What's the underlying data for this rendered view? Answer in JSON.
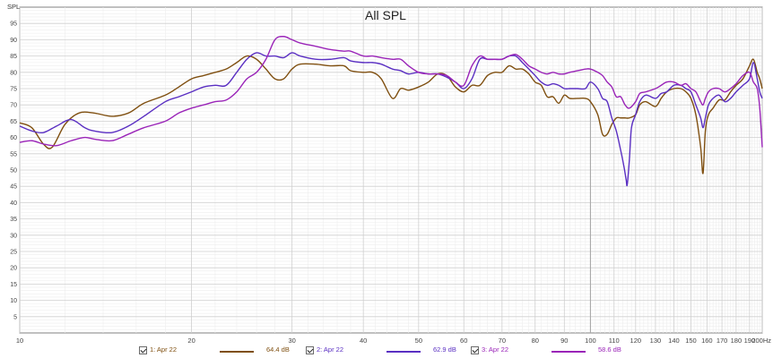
{
  "chart_data": {
    "type": "line",
    "title": "All SPL",
    "ylabel": "SPL",
    "xunit": "Hz",
    "xscale": "log",
    "xlim": [
      10,
      200
    ],
    "ylim": [
      0,
      100
    ],
    "grid": true,
    "legend_position": "bottom",
    "x_ticks": [
      {
        "value": 10,
        "label": "10"
      },
      {
        "value": 20,
        "label": "20"
      },
      {
        "value": 30,
        "label": "30"
      },
      {
        "value": 40,
        "label": "40"
      },
      {
        "value": 50,
        "label": "50"
      },
      {
        "value": 60,
        "label": "60"
      },
      {
        "value": 70,
        "label": "70"
      },
      {
        "value": 80,
        "label": "80"
      },
      {
        "value": 90,
        "label": "90"
      },
      {
        "value": 100,
        "label": "100"
      },
      {
        "value": 110,
        "label": "110"
      },
      {
        "value": 120,
        "label": "120"
      },
      {
        "value": 130,
        "label": "130"
      },
      {
        "value": 140,
        "label": "140"
      },
      {
        "value": 150,
        "label": "150"
      },
      {
        "value": 160,
        "label": "160"
      },
      {
        "value": 170,
        "label": "170"
      },
      {
        "value": 180,
        "label": "180"
      },
      {
        "value": 190,
        "label": "190"
      },
      {
        "value": 200,
        "label": "200Hz"
      }
    ],
    "y_ticks": [
      5,
      10,
      15,
      20,
      25,
      30,
      35,
      40,
      45,
      50,
      55,
      60,
      65,
      70,
      75,
      80,
      85,
      90,
      95
    ],
    "series": [
      {
        "name": "1: Apr 22",
        "value_label": "64.4 dB",
        "color": "#7f4f10",
        "points": [
          [
            10,
            64.5
          ],
          [
            10.5,
            63
          ],
          [
            11,
            58
          ],
          [
            11.4,
            57
          ],
          [
            12,
            64
          ],
          [
            12.7,
            67.5
          ],
          [
            13.5,
            67.5
          ],
          [
            14.5,
            66.5
          ],
          [
            15.5,
            67.5
          ],
          [
            16.5,
            70.5
          ],
          [
            18,
            73
          ],
          [
            19,
            75.5
          ],
          [
            20,
            78
          ],
          [
            21,
            79
          ],
          [
            22,
            80
          ],
          [
            23,
            81
          ],
          [
            24,
            83
          ],
          [
            25,
            85
          ],
          [
            26,
            84
          ],
          [
            27,
            81
          ],
          [
            28,
            78
          ],
          [
            29,
            78
          ],
          [
            30,
            81
          ],
          [
            31,
            82.5
          ],
          [
            33,
            82.5
          ],
          [
            35,
            82
          ],
          [
            37,
            82
          ],
          [
            38,
            80.5
          ],
          [
            40,
            80
          ],
          [
            41.5,
            80
          ],
          [
            43,
            78
          ],
          [
            45,
            72
          ],
          [
            46.5,
            75
          ],
          [
            48,
            74.5
          ],
          [
            50,
            75.5
          ],
          [
            52,
            77
          ],
          [
            54,
            79.5
          ],
          [
            56,
            79
          ],
          [
            58,
            75.5
          ],
          [
            60,
            74
          ],
          [
            62,
            76
          ],
          [
            64,
            76
          ],
          [
            66,
            79
          ],
          [
            68,
            80
          ],
          [
            70,
            80
          ],
          [
            72,
            82
          ],
          [
            74,
            81
          ],
          [
            76,
            81
          ],
          [
            78,
            79.5
          ],
          [
            80,
            77
          ],
          [
            82,
            76
          ],
          [
            84,
            72.5
          ],
          [
            86,
            72.5
          ],
          [
            88,
            70.5
          ],
          [
            90,
            73
          ],
          [
            92,
            72
          ],
          [
            95,
            72
          ],
          [
            98,
            72
          ],
          [
            100,
            71
          ],
          [
            103,
            67
          ],
          [
            105,
            61
          ],
          [
            107,
            61
          ],
          [
            109,
            64
          ],
          [
            111,
            66
          ],
          [
            113,
            66
          ],
          [
            115,
            66
          ],
          [
            117,
            66
          ],
          [
            120,
            67
          ],
          [
            122,
            70
          ],
          [
            125,
            71
          ],
          [
            130,
            69.5
          ],
          [
            133,
            72
          ],
          [
            136,
            74
          ],
          [
            140,
            75
          ],
          [
            144,
            75
          ],
          [
            147,
            74
          ],
          [
            150,
            72
          ],
          [
            153,
            67
          ],
          [
            156,
            57
          ],
          [
            157.5,
            49
          ],
          [
            159,
            62
          ],
          [
            161,
            67
          ],
          [
            164,
            69
          ],
          [
            168,
            71.5
          ],
          [
            172,
            71.5
          ],
          [
            176,
            74
          ],
          [
            180,
            76
          ],
          [
            185,
            78
          ],
          [
            190,
            82
          ],
          [
            193,
            84
          ],
          [
            196,
            80
          ],
          [
            198,
            78
          ],
          [
            200,
            75
          ]
        ]
      },
      {
        "name": "2: Apr 22",
        "value_label": "62.9 dB",
        "color": "#5a2fc2",
        "points": [
          [
            10,
            63.5
          ],
          [
            10.5,
            62
          ],
          [
            11,
            61.5
          ],
          [
            11.6,
            63.5
          ],
          [
            12.3,
            65.5
          ],
          [
            13,
            63
          ],
          [
            13.5,
            62
          ],
          [
            14.5,
            61.5
          ],
          [
            15.5,
            63.5
          ],
          [
            16.5,
            66.5
          ],
          [
            18,
            71
          ],
          [
            19,
            72.5
          ],
          [
            20,
            74
          ],
          [
            21,
            75.5
          ],
          [
            22,
            76
          ],
          [
            23,
            76
          ],
          [
            24,
            80
          ],
          [
            25,
            84
          ],
          [
            26,
            86
          ],
          [
            27,
            85
          ],
          [
            28,
            85
          ],
          [
            29,
            84.5
          ],
          [
            30,
            86
          ],
          [
            31,
            85
          ],
          [
            33,
            84
          ],
          [
            35,
            84
          ],
          [
            37,
            84.5
          ],
          [
            38,
            83.5
          ],
          [
            40,
            83
          ],
          [
            41.5,
            83
          ],
          [
            43,
            82.5
          ],
          [
            45,
            81
          ],
          [
            46.5,
            80.5
          ],
          [
            48,
            79.5
          ],
          [
            50,
            80
          ],
          [
            52,
            79.5
          ],
          [
            54,
            79.5
          ],
          [
            56,
            78.5
          ],
          [
            58,
            77
          ],
          [
            60,
            75
          ],
          [
            62,
            78
          ],
          [
            64,
            84
          ],
          [
            66,
            84
          ],
          [
            68,
            84
          ],
          [
            70,
            84
          ],
          [
            72,
            85
          ],
          [
            74,
            85
          ],
          [
            76,
            83
          ],
          [
            78,
            81
          ],
          [
            80,
            79
          ],
          [
            82,
            77
          ],
          [
            84,
            76
          ],
          [
            86,
            76.5
          ],
          [
            88,
            76
          ],
          [
            90,
            75
          ],
          [
            92,
            75
          ],
          [
            95,
            75
          ],
          [
            98,
            75
          ],
          [
            100,
            77
          ],
          [
            103,
            75
          ],
          [
            105,
            72
          ],
          [
            107,
            71
          ],
          [
            109,
            66
          ],
          [
            111,
            62
          ],
          [
            113,
            56
          ],
          [
            114.5,
            51
          ],
          [
            115.5,
            47
          ],
          [
            116,
            45.5
          ],
          [
            117,
            53
          ],
          [
            118,
            63
          ],
          [
            120,
            67
          ],
          [
            122,
            71
          ],
          [
            125,
            73
          ],
          [
            130,
            72
          ],
          [
            133,
            73.5
          ],
          [
            136,
            74
          ],
          [
            140,
            76
          ],
          [
            144,
            76
          ],
          [
            147,
            75
          ],
          [
            150,
            74
          ],
          [
            153,
            70
          ],
          [
            156,
            66
          ],
          [
            157.5,
            63
          ],
          [
            159,
            66
          ],
          [
            161,
            70
          ],
          [
            164,
            72
          ],
          [
            168,
            73
          ],
          [
            172,
            71
          ],
          [
            176,
            72
          ],
          [
            180,
            74
          ],
          [
            185,
            76
          ],
          [
            190,
            78
          ],
          [
            193,
            83
          ],
          [
            196,
            78
          ],
          [
            198,
            74
          ],
          [
            200,
            72
          ]
        ]
      },
      {
        "name": "3: Apr 22",
        "value_label": "58.6 dB",
        "color": "#9a24b8",
        "points": [
          [
            10,
            58.5
          ],
          [
            10.5,
            59
          ],
          [
            11,
            58
          ],
          [
            11.6,
            57.5
          ],
          [
            12.3,
            59
          ],
          [
            13,
            60
          ],
          [
            13.5,
            59.5
          ],
          [
            14.5,
            59
          ],
          [
            15.5,
            61
          ],
          [
            16.5,
            63
          ],
          [
            18,
            65
          ],
          [
            19,
            67.5
          ],
          [
            20,
            69
          ],
          [
            21,
            70
          ],
          [
            22,
            71
          ],
          [
            23,
            71.5
          ],
          [
            24,
            74
          ],
          [
            25,
            78
          ],
          [
            26,
            80
          ],
          [
            27,
            84
          ],
          [
            28,
            90
          ],
          [
            29,
            91
          ],
          [
            30,
            90
          ],
          [
            31,
            89
          ],
          [
            33,
            88
          ],
          [
            35,
            87
          ],
          [
            37,
            86.5
          ],
          [
            38,
            86.5
          ],
          [
            40,
            85
          ],
          [
            41.5,
            85
          ],
          [
            43,
            84.5
          ],
          [
            45,
            84
          ],
          [
            46.5,
            84
          ],
          [
            48,
            82
          ],
          [
            50,
            80
          ],
          [
            52,
            79.5
          ],
          [
            54,
            79.5
          ],
          [
            56,
            79
          ],
          [
            58,
            77
          ],
          [
            60,
            76
          ],
          [
            62,
            82
          ],
          [
            64,
            85
          ],
          [
            66,
            84
          ],
          [
            68,
            84
          ],
          [
            70,
            84
          ],
          [
            72,
            85
          ],
          [
            74,
            85.5
          ],
          [
            76,
            84
          ],
          [
            78,
            82
          ],
          [
            80,
            81
          ],
          [
            82,
            80
          ],
          [
            84,
            79.5
          ],
          [
            86,
            80
          ],
          [
            88,
            79.5
          ],
          [
            90,
            79.5
          ],
          [
            92,
            80
          ],
          [
            95,
            80.5
          ],
          [
            98,
            81
          ],
          [
            100,
            81
          ],
          [
            103,
            80
          ],
          [
            105,
            79
          ],
          [
            107,
            77
          ],
          [
            109,
            75.5
          ],
          [
            111,
            72.5
          ],
          [
            113,
            72.5
          ],
          [
            115,
            70
          ],
          [
            117,
            69
          ],
          [
            120,
            71
          ],
          [
            122,
            73.5
          ],
          [
            125,
            74
          ],
          [
            130,
            75
          ],
          [
            133,
            76
          ],
          [
            136,
            77
          ],
          [
            140,
            77
          ],
          [
            144,
            76
          ],
          [
            147,
            76.5
          ],
          [
            150,
            75
          ],
          [
            153,
            74
          ],
          [
            156,
            71
          ],
          [
            157.5,
            70
          ],
          [
            159,
            72
          ],
          [
            161,
            74
          ],
          [
            164,
            75
          ],
          [
            168,
            75
          ],
          [
            172,
            74
          ],
          [
            176,
            75
          ],
          [
            180,
            76.5
          ],
          [
            185,
            79
          ],
          [
            190,
            80
          ],
          [
            193,
            77
          ],
          [
            196,
            75
          ],
          [
            198,
            69
          ],
          [
            200,
            57
          ]
        ]
      }
    ]
  }
}
